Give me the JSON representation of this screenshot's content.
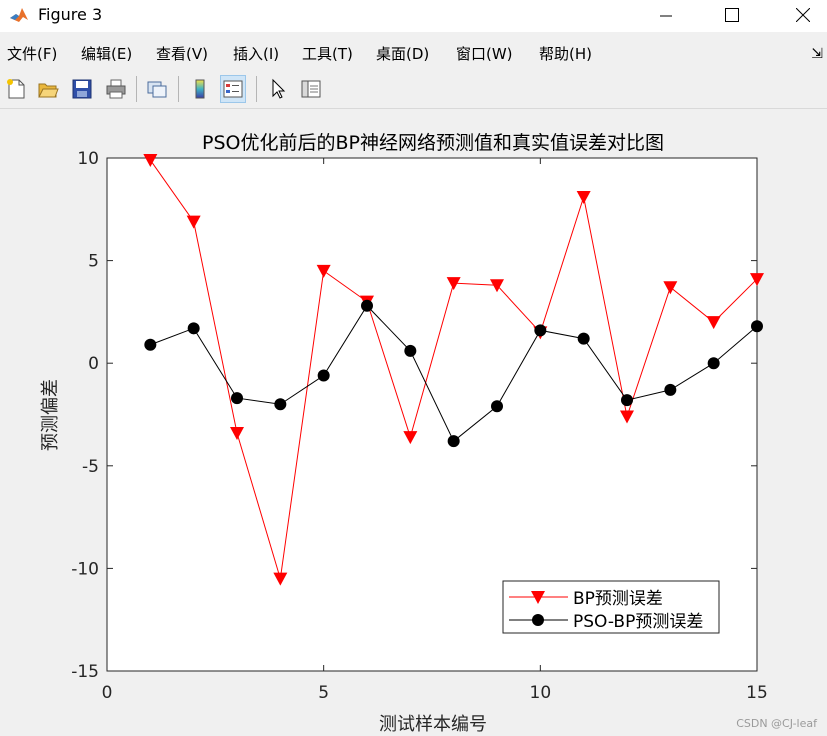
{
  "window": {
    "title": "Figure 3",
    "icon": "matlab-icon",
    "controls": [
      "minimize-icon",
      "maximize-icon",
      "close-icon"
    ]
  },
  "menu": [
    "文件(F)",
    "编辑(E)",
    "查看(V)",
    "插入(I)",
    "工具(T)",
    "桌面(D)",
    "窗口(W)",
    "帮助(H)"
  ],
  "toolbar": {
    "icons": [
      "new-figure-icon",
      "open-icon",
      "save-icon",
      "print-icon",
      "link-figure-icon",
      "colorbar-icon",
      "legend-icon",
      "pointer-icon",
      "property-editor-icon"
    ]
  },
  "chart_data": {
    "type": "line",
    "title": "PSO优化前后的BP神经网络预测值和真实值误差对比图",
    "xlabel": "测试样本编号",
    "ylabel": "预测偏差",
    "xlim": [
      0,
      15
    ],
    "ylim": [
      -15,
      10
    ],
    "xticks": [
      "0",
      "5",
      "10",
      "15"
    ],
    "yticks": [
      "10",
      "5",
      "0",
      "-5",
      "-10",
      "-15"
    ],
    "grid": false,
    "legend_position": "bottom-right",
    "x": [
      1,
      2,
      3,
      4,
      5,
      6,
      7,
      8,
      9,
      10,
      11,
      12,
      13,
      14,
      15
    ],
    "series": [
      {
        "name": "BP预测误差",
        "color": "#ff0000",
        "marker": "triangle-down",
        "values": [
          9.9,
          6.9,
          -3.4,
          -10.5,
          4.5,
          3.0,
          -3.6,
          3.9,
          3.8,
          1.5,
          8.1,
          -2.6,
          3.7,
          2.0,
          4.1
        ]
      },
      {
        "name": "PSO-BP预测误差",
        "color": "#000000",
        "marker": "circle",
        "values": [
          0.9,
          1.7,
          -1.7,
          -2.0,
          -0.6,
          2.8,
          0.6,
          -3.8,
          -2.1,
          1.6,
          1.2,
          -1.8,
          -1.3,
          0.0,
          1.8
        ]
      }
    ]
  },
  "watermark": "CSDN @CJ-leaf"
}
